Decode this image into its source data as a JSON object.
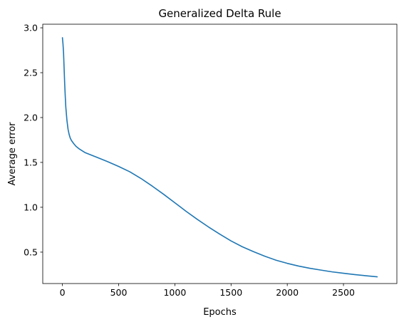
{
  "chart_data": {
    "type": "line",
    "title": "Generalized Delta Rule",
    "xlabel": "Epochs",
    "ylabel": "Average error",
    "xlim": [
      -175,
      2975
    ],
    "ylim": [
      0.15,
      3.04
    ],
    "x_ticks": [
      0,
      500,
      1000,
      1500,
      2000,
      2500
    ],
    "x_tick_labels": [
      "0",
      "500",
      "1000",
      "1500",
      "2000",
      "2500"
    ],
    "y_ticks": [
      0.5,
      1.0,
      1.5,
      2.0,
      2.5,
      3.0
    ],
    "y_tick_labels": [
      "0.5",
      "1.0",
      "1.5",
      "2.0",
      "2.5",
      "3.0"
    ],
    "grid": false,
    "legend": "none",
    "series": [
      {
        "color": "#1f77b4",
        "x": [
          0,
          5,
          10,
          15,
          20,
          25,
          30,
          40,
          50,
          60,
          70,
          80,
          100,
          120,
          150,
          200,
          250,
          300,
          400,
          500,
          600,
          700,
          800,
          900,
          1000,
          1100,
          1200,
          1300,
          1400,
          1500,
          1600,
          1700,
          1800,
          1900,
          2000,
          2100,
          2200,
          2300,
          2400,
          2500,
          2600,
          2700,
          2800
        ],
        "y": [
          2.89,
          2.82,
          2.72,
          2.55,
          2.38,
          2.24,
          2.12,
          1.97,
          1.87,
          1.81,
          1.77,
          1.745,
          1.71,
          1.68,
          1.65,
          1.61,
          1.585,
          1.56,
          1.51,
          1.455,
          1.395,
          1.32,
          1.235,
          1.145,
          1.05,
          0.955,
          0.865,
          0.78,
          0.7,
          0.625,
          0.56,
          0.505,
          0.455,
          0.41,
          0.375,
          0.345,
          0.32,
          0.3,
          0.28,
          0.265,
          0.25,
          0.237,
          0.225
        ]
      }
    ]
  }
}
